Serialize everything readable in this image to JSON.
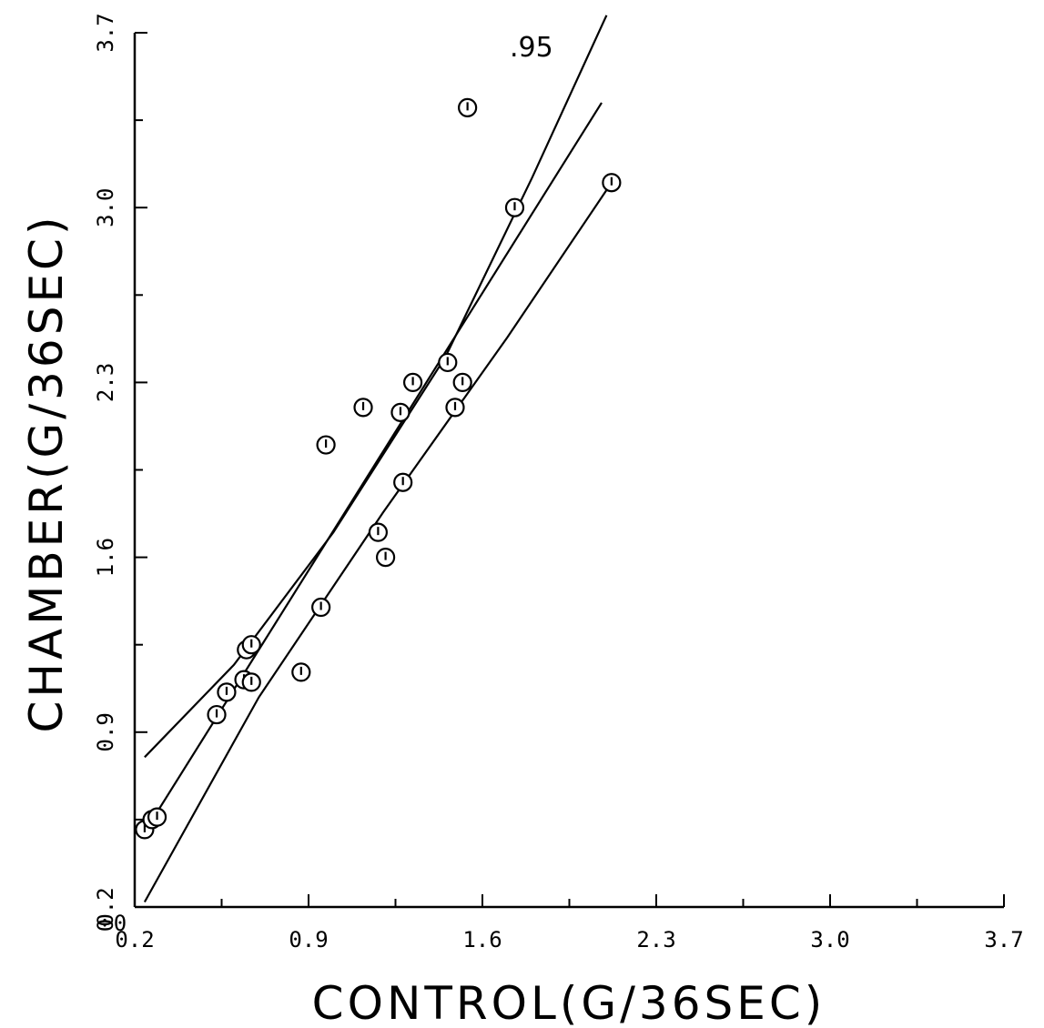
{
  "chart_data": {
    "type": "scatter",
    "title": "",
    "xlabel": "CONTROL(G/36SEC)",
    "ylabel": "CHAMBER(G/36SEC)",
    "xlim": [
      0.2,
      3.7
    ],
    "ylim": [
      0.2,
      3.7
    ],
    "xticks": [
      0.2,
      0.9,
      1.6,
      2.3,
      3.0,
      3.7
    ],
    "yticks": [
      0.2,
      0.9,
      1.6,
      2.3,
      3.0,
      3.7
    ],
    "xtick_labels": [
      "0.2",
      "0.9",
      "1.6",
      "2.3",
      "3.0",
      "3.7"
    ],
    "ytick_labels": [
      "0.2",
      "0.9",
      "1.6",
      "2.3",
      "3.0",
      "3.7"
    ],
    "x_zero_label": "0",
    "y_zero_label": "0",
    "grid": false,
    "annotation": ".95",
    "points": [
      {
        "x": 0.24,
        "y": 0.51
      },
      {
        "x": 0.27,
        "y": 0.55
      },
      {
        "x": 0.29,
        "y": 0.56
      },
      {
        "x": 0.53,
        "y": 0.97
      },
      {
        "x": 0.57,
        "y": 1.06
      },
      {
        "x": 0.64,
        "y": 1.11
      },
      {
        "x": 0.67,
        "y": 1.1
      },
      {
        "x": 0.65,
        "y": 1.23
      },
      {
        "x": 0.67,
        "y": 1.25
      },
      {
        "x": 0.87,
        "y": 1.14
      },
      {
        "x": 0.95,
        "y": 1.4
      },
      {
        "x": 0.97,
        "y": 2.05
      },
      {
        "x": 1.12,
        "y": 2.2
      },
      {
        "x": 1.18,
        "y": 1.7
      },
      {
        "x": 1.21,
        "y": 1.6
      },
      {
        "x": 1.27,
        "y": 2.18
      },
      {
        "x": 1.28,
        "y": 1.9
      },
      {
        "x": 1.32,
        "y": 2.3
      },
      {
        "x": 1.46,
        "y": 2.38
      },
      {
        "x": 1.49,
        "y": 2.2
      },
      {
        "x": 1.52,
        "y": 2.3
      },
      {
        "x": 1.54,
        "y": 3.4
      },
      {
        "x": 1.73,
        "y": 3.0
      },
      {
        "x": 2.12,
        "y": 3.1
      }
    ],
    "lines": [
      {
        "name": "upper",
        "points": [
          [
            0.24,
            0.8
          ],
          [
            0.6,
            1.17
          ],
          [
            1.0,
            1.7
          ],
          [
            1.45,
            2.4
          ],
          [
            1.8,
            3.12
          ],
          [
            2.1,
            3.77
          ]
        ]
      },
      {
        "name": "fit",
        "points": [
          [
            0.24,
            0.5
          ],
          [
            2.08,
            3.42
          ]
        ]
      },
      {
        "name": "lower",
        "points": [
          [
            0.24,
            0.22
          ],
          [
            0.7,
            1.04
          ],
          [
            1.2,
            1.78
          ],
          [
            1.7,
            2.48
          ],
          [
            2.12,
            3.1
          ]
        ]
      }
    ]
  }
}
